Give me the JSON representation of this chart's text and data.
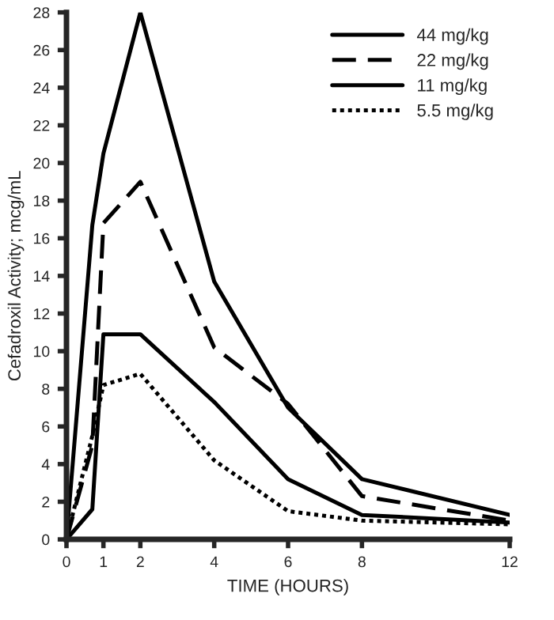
{
  "chart_data": {
    "type": "line",
    "xlabel": "TIME (HOURS)",
    "ylabel": "Cefadroxil Activity; mcg/mL",
    "x": [
      0,
      0.7,
      1,
      2,
      4,
      6,
      8,
      12
    ],
    "series": [
      {
        "name": "44 mg/kg",
        "color": "#000000",
        "line_style": "solid",
        "values": [
          0,
          16.7,
          20.5,
          28.0,
          13.7,
          7.0,
          3.2,
          1.3
        ]
      },
      {
        "name": "22 mg/kg",
        "color": "#000000",
        "line_style": "dashed",
        "values": [
          0,
          5.0,
          16.8,
          19.0,
          10.2,
          7.2,
          2.3,
          1.0
        ]
      },
      {
        "name": "11 mg/kg",
        "color": "#000000",
        "line_style": "solid",
        "values": [
          0,
          1.6,
          10.9,
          10.9,
          7.3,
          3.2,
          1.3,
          0.9
        ]
      },
      {
        "name": "5.5 mg/kg",
        "color": "#000000",
        "line_style": "dotted",
        "values": [
          0,
          5.5,
          8.2,
          8.8,
          4.2,
          1.5,
          1.0,
          0.8
        ]
      }
    ],
    "xlim": [
      0,
      12
    ],
    "xticks": [
      0,
      1,
      2,
      4,
      6,
      8,
      12
    ],
    "ylim": [
      0,
      28
    ],
    "yticks": [
      0,
      2,
      4,
      6,
      8,
      10,
      12,
      14,
      16,
      18,
      20,
      22,
      24,
      26,
      28
    ],
    "grid": false,
    "legend": "top right"
  }
}
